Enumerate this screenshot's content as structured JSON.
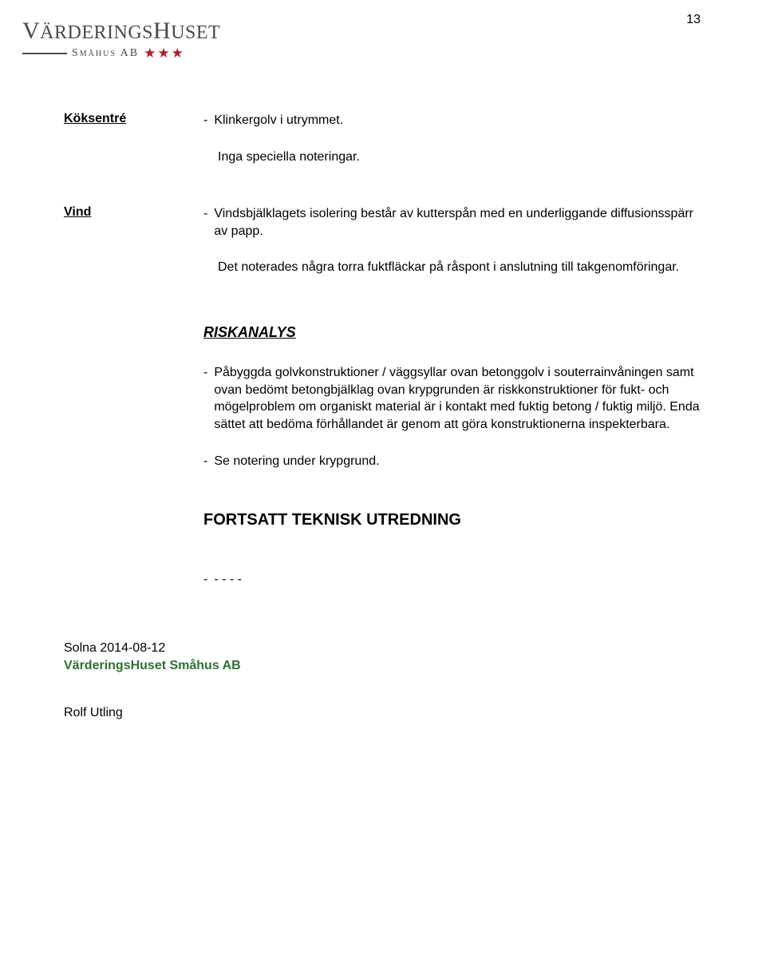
{
  "page_number": "13",
  "logo": {
    "name_part1": "V",
    "name_part2": "ÄRDERINGS",
    "name_part3": "H",
    "name_part4": "USET",
    "sub": "Småhus AB",
    "star_glyph": "★"
  },
  "rows": [
    {
      "label": "Köksentré",
      "items": [
        {
          "text": "Klinkergolv i utrymmet."
        }
      ],
      "trailing_plain": "Inga speciella noteringar."
    },
    {
      "label": "Vind",
      "items": [
        {
          "text": "Vindsbjälklagets isolering består av kutterspån med en underliggande diffusionsspärr av papp."
        }
      ],
      "trailing_plain": "Det noterades några torra fuktfläckar på råspont i anslutning till takgenomföringar."
    }
  ],
  "risk": {
    "heading": "RISKANALYS",
    "items": [
      "Påbyggda golvkonstruktioner / väggsyllar ovan betonggolv i souterrainvåningen samt ovan bedömt betongbjälklag ovan krypgrunden är riskkonstruktioner för fukt- och mögelproblem om organiskt material är i kontakt med fuktig betong / fuktig miljö. Enda sättet att bedöma förhållandet är genom att göra konstruktionerna inspekterbara.",
      "Se notering under krypgrund."
    ]
  },
  "fortsatt": {
    "heading": "FORTSATT TEKNISK UTREDNING",
    "item": "- - - -"
  },
  "signoff": {
    "place_date": "Solna 2014-08-12",
    "company": "VärderingsHuset Småhus AB",
    "name": "Rolf Utling"
  },
  "colors": {
    "text": "#000000",
    "logo_grey": "#494949",
    "star_red": "#b31c2b",
    "company_green": "#2e6f33",
    "background": "#ffffff"
  },
  "fonts": {
    "body_family": "Arial, Helvetica, sans-serif",
    "body_size_pt": 12,
    "heading_size_pt": 14,
    "logo_family": "Georgia, Times New Roman, serif"
  }
}
